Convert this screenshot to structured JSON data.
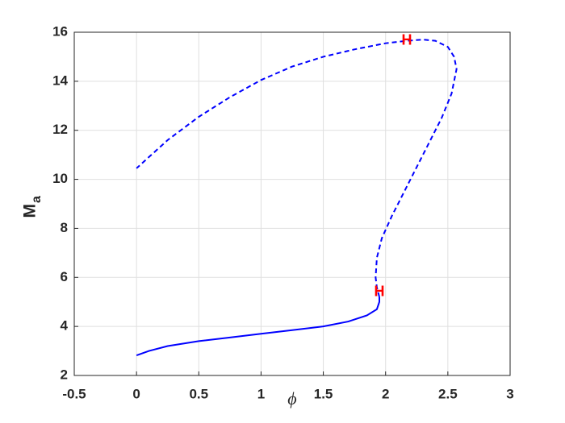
{
  "chart_data": {
    "type": "line",
    "xlabel": "ϕ",
    "ylabel": {
      "main": "M",
      "sub": "a"
    },
    "xlim": [
      -0.5,
      3
    ],
    "ylim": [
      2,
      16
    ],
    "xticks": [
      -0.5,
      0,
      0.5,
      1,
      1.5,
      2,
      2.5,
      3
    ],
    "yticks": [
      2,
      4,
      6,
      8,
      10,
      12,
      14,
      16
    ],
    "grid": true,
    "series": [
      {
        "style": "solid",
        "color": "#0000ff",
        "x": [
          0,
          0.1,
          0.25,
          0.5,
          0.75,
          1.0,
          1.25,
          1.5,
          1.7,
          1.85,
          1.93,
          1.95,
          1.95
        ],
        "values": [
          2.82,
          3.0,
          3.2,
          3.4,
          3.55,
          3.7,
          3.85,
          4.0,
          4.2,
          4.45,
          4.7,
          5.0,
          5.2
        ]
      },
      {
        "style": "dashed",
        "color": "#0000ff",
        "x": [
          1.95,
          1.93,
          1.92,
          1.93,
          1.97,
          2.05,
          2.15,
          2.3,
          2.45,
          2.53,
          2.57,
          2.55,
          2.5,
          2.4,
          2.3,
          2.17,
          2.0,
          1.75,
          1.5,
          1.25,
          1.0,
          0.75,
          0.5,
          0.25,
          0
        ],
        "values": [
          5.2,
          5.6,
          6.0,
          6.8,
          7.6,
          8.5,
          9.5,
          11,
          12.5,
          13.5,
          14.5,
          15.0,
          15.4,
          15.65,
          15.7,
          15.65,
          15.55,
          15.3,
          15.0,
          14.6,
          14.05,
          13.35,
          12.55,
          11.6,
          10.45
        ]
      }
    ],
    "points": [
      {
        "label": "H",
        "color": "#ff0000",
        "x": 1.95,
        "y": 5.4
      },
      {
        "label": "H",
        "color": "#ff0000",
        "x": 2.17,
        "y": 15.65
      }
    ]
  }
}
